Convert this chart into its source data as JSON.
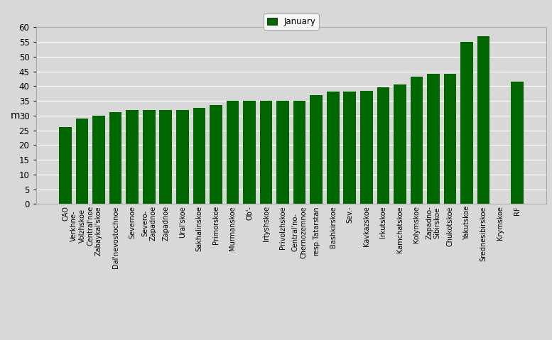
{
  "categories": [
    "CAO",
    "Verkhne-\nVolzhskoe\nCentral'noe",
    "Zabaykal'skoe",
    "Dal'nevostochnoe",
    "Severnoe",
    "Severo-\nZapadnoe",
    "Zapadnoe",
    "Ural'skoe",
    "Sakhalinskoe",
    "Primorskoe",
    "Murmanskoe",
    "Ob'-",
    "Irtyshskoe",
    "Privolzhskoe",
    "Central'no-\nChernozemnoe",
    "resp.Tatarstan",
    "Bashkirskoe",
    "Sev.-",
    "Kavkazskoe",
    "Irkutskoe",
    "Kamchatskoe",
    "Kolymskoe",
    "Zapadno-\nSibirskoe",
    "Chukotskoe",
    "Yakutskoe",
    "Srednesibirskoe",
    "Krymskoe",
    "RF"
  ],
  "values": [
    26.2,
    29.0,
    30.0,
    31.2,
    32.0,
    32.0,
    32.0,
    32.0,
    32.5,
    33.5,
    35.0,
    35.0,
    35.0,
    35.0,
    35.0,
    37.0,
    38.2,
    38.2,
    38.5,
    39.5,
    40.5,
    43.2,
    44.2,
    44.2,
    55.0,
    57.0,
    0.0,
    41.5
  ],
  "bar_color": "#006600",
  "ylabel": "m",
  "ylim": [
    0,
    60
  ],
  "yticks": [
    0,
    5,
    10,
    15,
    20,
    25,
    30,
    35,
    40,
    45,
    50,
    55,
    60
  ],
  "legend_label": "January",
  "bg_color": "#d8d8d8",
  "plot_bg_color": "#d8d8d8",
  "grid_color": "#ffffff",
  "spine_color": "#aaaaaa"
}
